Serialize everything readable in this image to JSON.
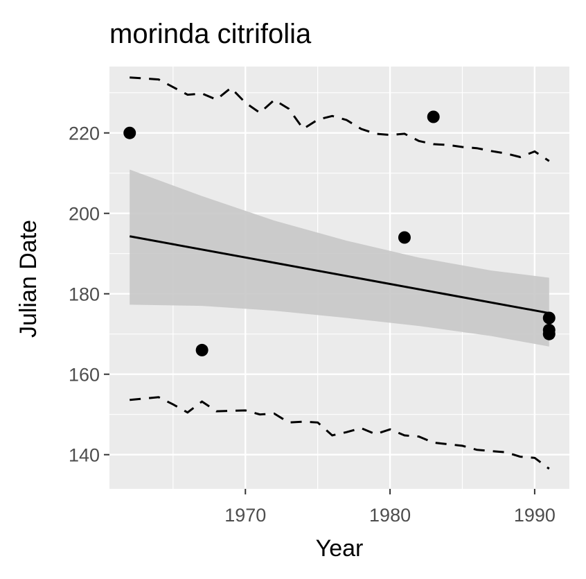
{
  "chart_data": {
    "type": "scatter",
    "title": "morinda citrifolia",
    "xlabel": "Year",
    "ylabel": "Julian Date",
    "xlim": [
      1960.6,
      1992.4
    ],
    "ylim": [
      131.5,
      236.5
    ],
    "x_ticks": [
      1970,
      1980,
      1990
    ],
    "x_tick_labels": [
      "1970",
      "1980",
      "1990"
    ],
    "y_ticks": [
      140,
      160,
      180,
      200,
      220
    ],
    "y_tick_labels": [
      "140",
      "160",
      "180",
      "200",
      "220"
    ],
    "x_minor_ticks": [
      1965,
      1975,
      1985
    ],
    "y_minor_ticks": [
      150,
      170,
      190,
      210,
      230
    ],
    "grid": true,
    "legend": "none",
    "points": {
      "x": [
        1962,
        1967,
        1981,
        1983,
        1991,
        1991,
        1991
      ],
      "y": [
        220,
        166,
        194,
        224,
        174,
        171,
        170
      ]
    },
    "trend_line": {
      "x": [
        1962,
        1991
      ],
      "y": [
        194.3,
        175.2
      ]
    },
    "confidence_band": {
      "x": [
        1962,
        1967,
        1972,
        1977,
        1982,
        1987,
        1991
      ],
      "upper": [
        210.9,
        204.3,
        198.2,
        193.2,
        189.0,
        185.8,
        184.0
      ],
      "lower": [
        177.3,
        177.0,
        175.8,
        174.0,
        172.0,
        169.5,
        166.9
      ]
    },
    "upper_dashed": {
      "x": [
        1962,
        1964,
        1966,
        1967,
        1968,
        1969,
        1970,
        1971,
        1972,
        1973,
        1974,
        1975,
        1976,
        1977,
        1978,
        1979,
        1980,
        1981,
        1982,
        1983,
        1984,
        1985,
        1986,
        1987,
        1988,
        1989,
        1990,
        1991
      ],
      "y": [
        233.8,
        233.3,
        229.5,
        229.8,
        228.3,
        231.2,
        227.5,
        225.0,
        228.2,
        226.0,
        221.0,
        223.3,
        224.2,
        223.2,
        221.0,
        219.8,
        219.5,
        219.8,
        218.0,
        217.2,
        217.0,
        216.5,
        216.2,
        215.5,
        214.9,
        214.0,
        215.4,
        213.0
      ]
    },
    "lower_dashed": {
      "x": [
        1962,
        1964,
        1965,
        1966,
        1967,
        1968,
        1970,
        1971,
        1972,
        1973,
        1974,
        1975,
        1976,
        1977,
        1978,
        1979,
        1980,
        1981,
        1982,
        1983,
        1984,
        1985,
        1986,
        1987,
        1988,
        1989,
        1990,
        1991
      ],
      "y": [
        153.6,
        154.3,
        152.5,
        150.5,
        153.2,
        150.8,
        151.0,
        150.0,
        150.2,
        148.0,
        148.2,
        148.0,
        144.8,
        145.6,
        146.6,
        145.1,
        146.3,
        144.8,
        144.5,
        143.0,
        142.6,
        142.2,
        141.2,
        140.9,
        140.6,
        139.5,
        139.2,
        136.5
      ]
    },
    "colors": {
      "panel": "#ebebeb",
      "grid": "#ffffff",
      "band": "#c8c8c8",
      "line": "#000000",
      "points": "#000000",
      "tick_text": "#4d4d4d"
    }
  }
}
